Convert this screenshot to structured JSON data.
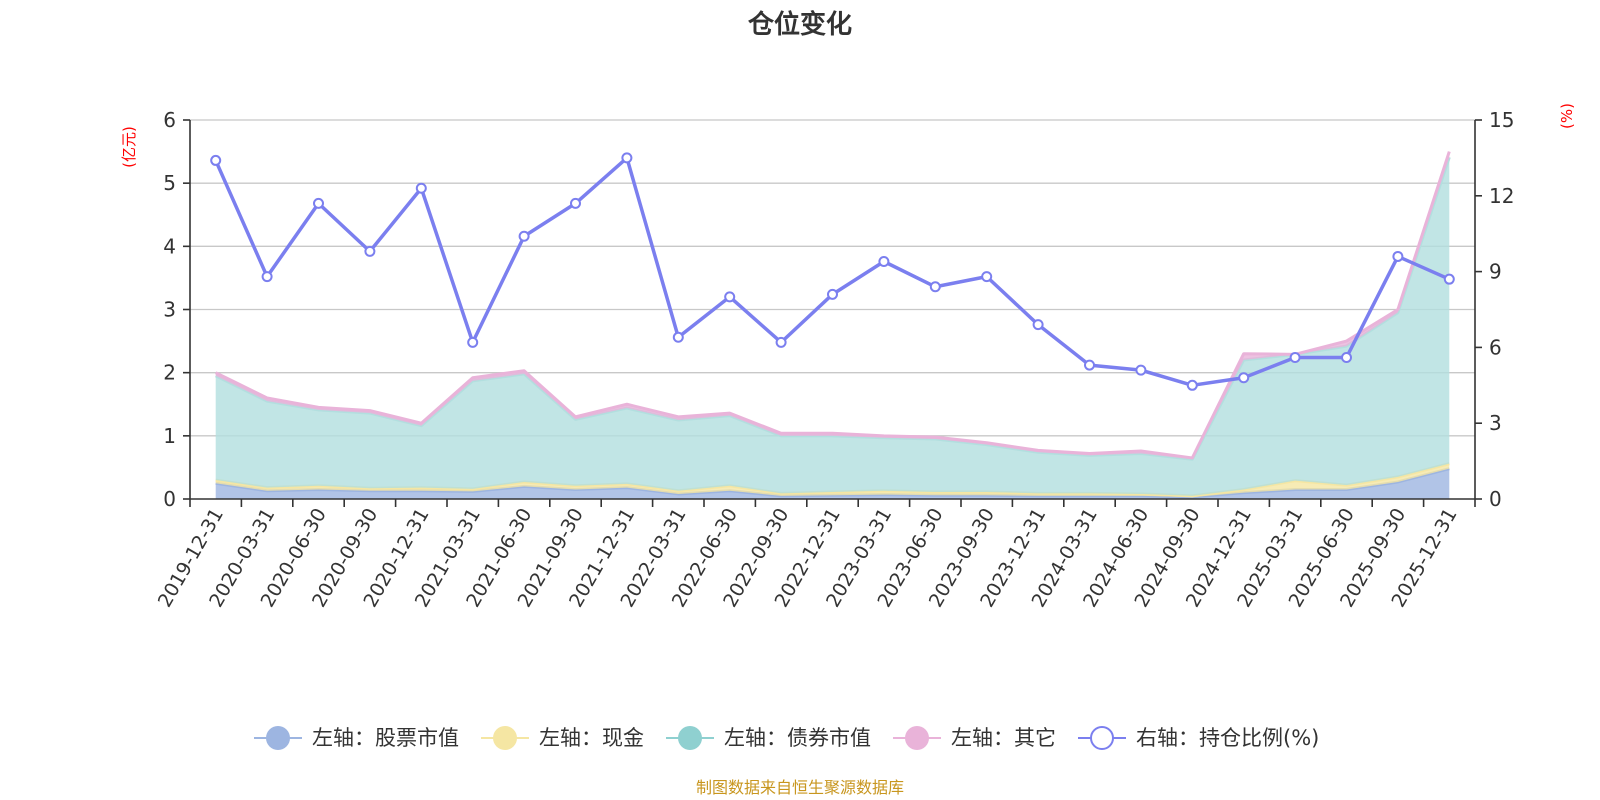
{
  "chart_data": {
    "type": "area",
    "title": "仓位变化",
    "left_axis_unit": "(亿元)",
    "right_axis_unit": "(%)",
    "categories": [
      "2019-12-31",
      "2020-03-31",
      "2020-06-30",
      "2020-09-30",
      "2020-12-31",
      "2021-03-31",
      "2021-06-30",
      "2021-09-30",
      "2021-12-31",
      "2022-03-31",
      "2022-06-30",
      "2022-09-30",
      "2022-12-31",
      "2023-03-31",
      "2023-06-30",
      "2023-09-30",
      "2023-12-31",
      "2024-03-31",
      "2024-06-30",
      "2024-09-30",
      "2024-12-31",
      "2025-03-31",
      "2025-06-30",
      "2025-09-30",
      "2025-12-31"
    ],
    "left_axis": {
      "min": 0,
      "max": 6,
      "ticks": [
        0,
        1,
        2,
        3,
        4,
        5,
        6
      ]
    },
    "right_axis": {
      "min": 0,
      "max": 15,
      "ticks": [
        0,
        3,
        6,
        9,
        12,
        15
      ]
    },
    "grid": true,
    "legend_position": "bottom",
    "series": [
      {
        "name": "左轴：股票市值",
        "type": "stacked-area",
        "axis": "left",
        "color": "#9db5e1",
        "values": [
          0.25,
          0.13,
          0.15,
          0.13,
          0.13,
          0.12,
          0.2,
          0.15,
          0.18,
          0.08,
          0.13,
          0.05,
          0.06,
          0.07,
          0.06,
          0.06,
          0.05,
          0.05,
          0.05,
          0.03,
          0.1,
          0.15,
          0.15,
          0.27,
          0.48
        ]
      },
      {
        "name": "左轴：现金",
        "type": "stacked-area",
        "axis": "left",
        "color": "#f5e6a3",
        "values": [
          0.05,
          0.05,
          0.06,
          0.04,
          0.05,
          0.04,
          0.07,
          0.06,
          0.06,
          0.05,
          0.08,
          0.04,
          0.05,
          0.06,
          0.05,
          0.05,
          0.04,
          0.04,
          0.03,
          0.02,
          0.05,
          0.14,
          0.07,
          0.08,
          0.08
        ]
      },
      {
        "name": "左轴：债券市值",
        "type": "stacked-area",
        "axis": "left",
        "color": "#b2dfdf",
        "values": [
          1.65,
          1.37,
          1.2,
          1.19,
          0.98,
          1.71,
          1.71,
          1.05,
          1.2,
          1.12,
          1.11,
          0.91,
          0.89,
          0.84,
          0.84,
          0.75,
          0.65,
          0.6,
          0.64,
          0.58,
          2.05,
          2.0,
          2.2,
          2.6,
          4.85
        ]
      },
      {
        "name": "左轴：其它",
        "type": "stacked-area",
        "axis": "left",
        "color": "#e9b3d9",
        "values": [
          0.05,
          0.05,
          0.04,
          0.04,
          0.04,
          0.05,
          0.05,
          0.04,
          0.06,
          0.05,
          0.04,
          0.04,
          0.04,
          0.03,
          0.03,
          0.03,
          0.03,
          0.03,
          0.04,
          0.02,
          0.1,
          0.0,
          0.08,
          0.05,
          0.09
        ]
      },
      {
        "name": "右轴：持仓比例(%)",
        "type": "line",
        "axis": "right",
        "color": "#7b7fef",
        "values": [
          13.4,
          8.8,
          11.7,
          9.8,
          12.3,
          6.2,
          10.4,
          11.7,
          13.5,
          6.4,
          8.0,
          6.2,
          8.1,
          9.4,
          8.4,
          8.8,
          6.9,
          5.3,
          5.1,
          4.5,
          4.8,
          5.6,
          5.6,
          9.6,
          8.7
        ]
      }
    ]
  },
  "legend": [
    {
      "label": "左轴：股票市值",
      "color": "#9db5e1",
      "marker": "filled-circle"
    },
    {
      "label": "左轴：现金",
      "color": "#f5e6a3",
      "marker": "filled-circle"
    },
    {
      "label": "左轴：债券市值",
      "color": "#8fd0d0",
      "marker": "filled-circle"
    },
    {
      "label": "左轴：其它",
      "color": "#e9b3d9",
      "marker": "filled-circle"
    },
    {
      "label": "右轴：持仓比例(%)",
      "color": "#7b7fef",
      "marker": "hollow-circle"
    }
  ],
  "source_note": "制图数据来自恒生聚源数据库"
}
